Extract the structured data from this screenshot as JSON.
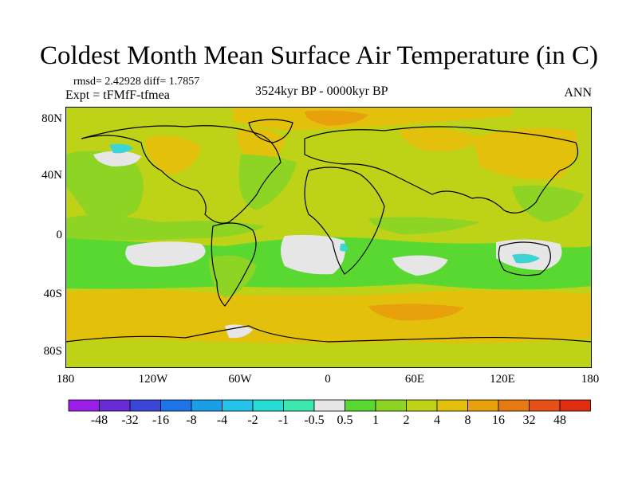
{
  "title": "Coldest Month Mean Surface Air Temperature (in C)",
  "stats": "rmsd= 2.42928 diff= 1.7857",
  "experiment": "Expt = tFMfF-tfmea",
  "period": "3524kyr BP - 0000kyr BP",
  "season": "ANN",
  "y_axis_labels": [
    "80N",
    "40N",
    "0",
    "40S",
    "80S"
  ],
  "x_axis_labels": [
    "180",
    "120W",
    "60W",
    "0",
    "60E",
    "120E",
    "180"
  ],
  "colorbar": {
    "labels": [
      "-48",
      "-32",
      "-16",
      "-8",
      "-4",
      "-2",
      "-1",
      "-0.5",
      "0.5",
      "1",
      "2",
      "4",
      "8",
      "16",
      "32",
      "48"
    ],
    "colors": [
      "#9a1ee8",
      "#6a2ad6",
      "#3a46d8",
      "#1e74e6",
      "#1a9ee8",
      "#24c4ea",
      "#28dcd6",
      "#3ce8b0",
      "#e6e6e6",
      "#5ad832",
      "#8ed424",
      "#bed218",
      "#e2c00c",
      "#e8a00c",
      "#e87a14",
      "#e8501a",
      "#e02c10"
    ]
  },
  "palette": {
    "land_bg": "#bed218",
    "ocean_bg": "#8ed424",
    "near_zero": "#e6e6e6",
    "cyan": "#3cd4d4"
  }
}
